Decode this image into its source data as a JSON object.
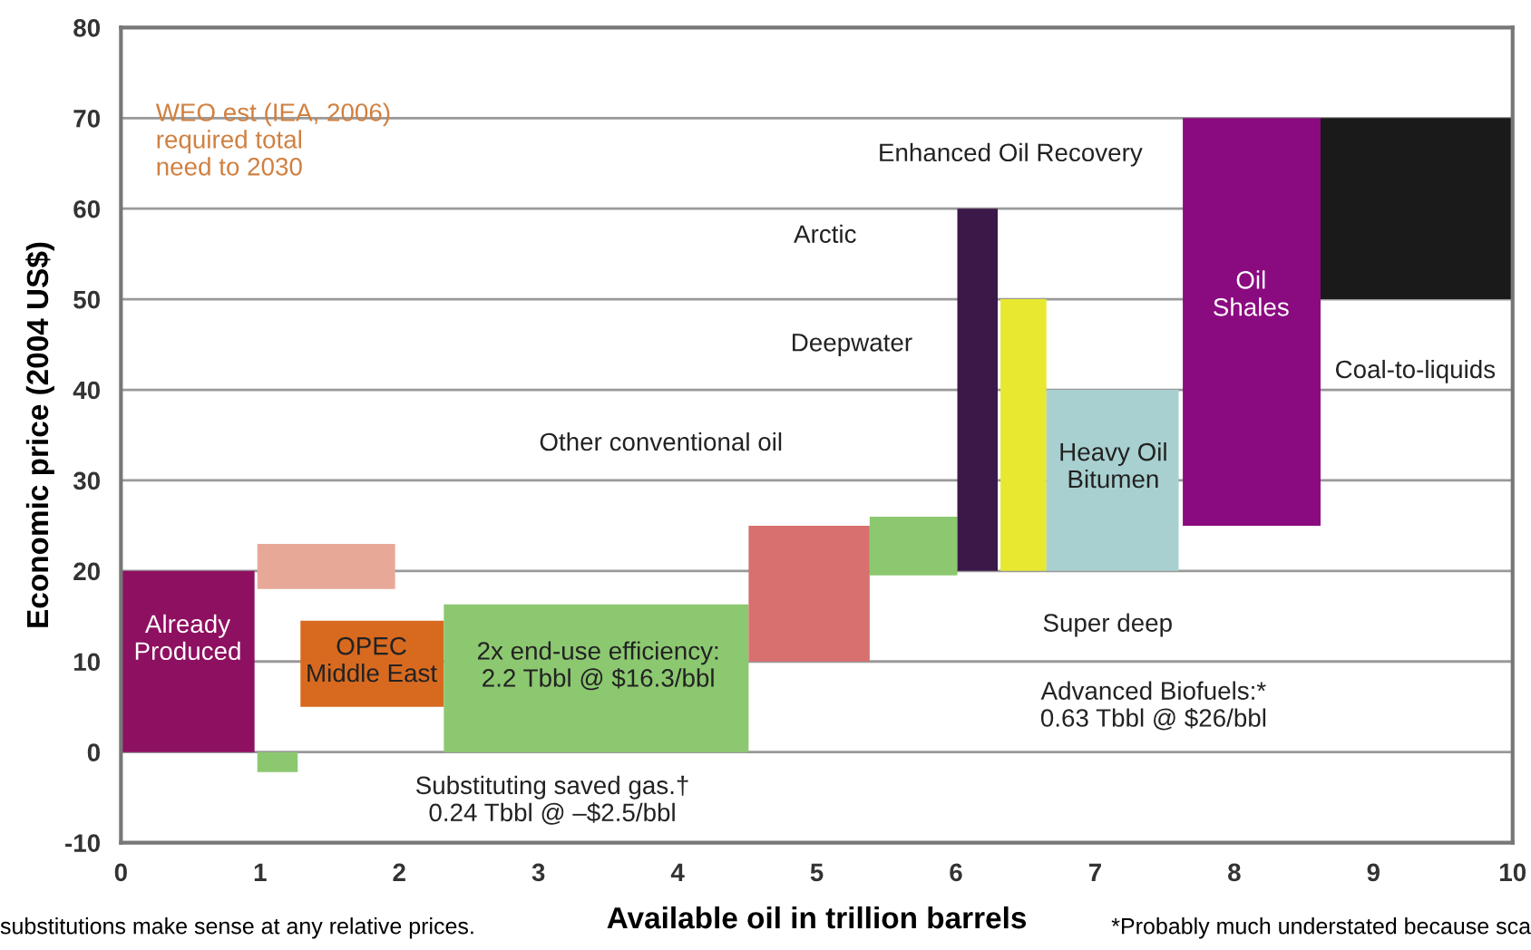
{
  "chart_data": {
    "type": "area",
    "xlabel": "Available oil in trillion barrels",
    "ylabel": "Economic price (2004 US$)",
    "xlim": [
      0,
      10
    ],
    "ylim": [
      -10,
      80
    ],
    "xticks": [
      0,
      1,
      2,
      3,
      4,
      5,
      6,
      7,
      8,
      9,
      10
    ],
    "yticks": [
      -10,
      0,
      10,
      20,
      30,
      40,
      50,
      60,
      70,
      80
    ],
    "grid": "y",
    "series": [
      {
        "color": "#8e1060",
        "x": [
          0,
          0,
          0.96,
          0.96
        ],
        "values": [
          0,
          20,
          20,
          0
        ]
      },
      {
        "color": "#e8a898",
        "x": [
          0.98,
          0.98,
          1.97,
          1.97
        ],
        "values": [
          18,
          23,
          23,
          18
        ]
      },
      {
        "color": "#8cc870",
        "x": [
          0.98,
          0.98,
          1.27,
          1.27
        ],
        "values": [
          -2.2,
          0,
          0,
          -2.2
        ]
      },
      {
        "color": "#d86a20",
        "x": [
          1.29,
          1.29,
          2.32,
          2.32
        ],
        "values": [
          5,
          14.5,
          14.5,
          5
        ]
      },
      {
        "color": "#8cc870",
        "x": [
          2.32,
          2.32,
          4.51,
          4.51
        ],
        "values": [
          0,
          16.3,
          16.3,
          0
        ]
      },
      {
        "color": "#d87070",
        "x": [
          4.51,
          4.51,
          5.38,
          5.38
        ],
        "values": [
          10,
          25,
          25,
          10
        ]
      },
      {
        "color": "#8cc870",
        "x": [
          5.38,
          5.38,
          6.01,
          6.01
        ],
        "values": [
          19.5,
          26,
          26,
          19.5
        ]
      },
      {
        "color": "#3a1848",
        "x": [
          6.01,
          6.01,
          6.3,
          6.3
        ],
        "values": [
          20,
          60,
          60,
          20
        ]
      },
      {
        "color": "#e8e830",
        "x": [
          6.32,
          6.32,
          6.65,
          6.65
        ],
        "values": [
          20,
          50,
          50,
          20
        ]
      },
      {
        "color": "#a8d0d0",
        "x": [
          6.65,
          6.65,
          7.6,
          7.6
        ],
        "values": [
          20,
          40,
          40,
          20
        ]
      },
      {
        "color": "#8a0a80",
        "x": [
          7.63,
          7.63,
          8.62,
          8.62
        ],
        "values": [
          25,
          70,
          70,
          25
        ]
      },
      {
        "color": "#1a1a1a",
        "x": [
          8.62,
          8.62,
          10,
          10
        ],
        "values": [
          50,
          70,
          70,
          50
        ]
      }
    ],
    "annotations": [
      "WEO est (IEA, 2006)\nrequired total\nneed to 2030",
      "Already\nProduced",
      "OPEC\nMiddle East",
      "2x end-use efficiency:\n2.2 Tbbl @ $16.3/bbl",
      "Substituting saved gas.†\n0.24 Tbbl @ –$2.5/bbl",
      "Other conventional oil",
      "Deepwater",
      "Arctic",
      "Enhanced Oil Recovery",
      "Super deep",
      "Advanced Biofuels:*\n0.63 Tbbl @ $26/bbl",
      "Heavy Oil\nBitumen",
      "Oil\nShales",
      "Coal-to-liquids",
      "substitutions make sense at any relative prices.",
      "*Probably much understated because sca"
    ]
  }
}
